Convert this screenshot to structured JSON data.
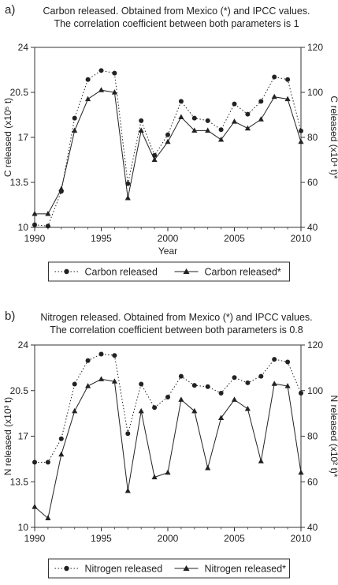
{
  "panels": [
    {
      "letter": "a)",
      "title_line1": "Carbon released. Obtained from Mexico (*) and IPCC values.",
      "title_line2": "The correlation coefficient between both parameters is 1"
    },
    {
      "letter": "b)",
      "title_line1": "Nitrogen released. Obtained from Mexico (*) and IPCC values.",
      "title_line2": "The correlation coefficient between both parameters is 0.8"
    }
  ],
  "chart_data": [
    {
      "type": "line",
      "title": "Carbon released. Obtained from Mexico (*) and IPCC values.",
      "subtitle": "The correlation coefficient between both parameters is 1",
      "xlabel": "Year",
      "ylabel_left": "C released (x10⁵ t)",
      "ylabel_right": "C released (x10⁴ t)*",
      "xlim": [
        1990,
        2010
      ],
      "xticks": [
        1990,
        1995,
        2000,
        2005,
        2010
      ],
      "ylim_left": [
        10,
        24
      ],
      "yticks_left": [
        "10",
        "13.5",
        "17",
        "20.5",
        "24"
      ],
      "ylim_right": [
        40,
        120
      ],
      "yticks_right": [
        "40",
        "60",
        "80",
        "100",
        "120"
      ],
      "grid": false,
      "legend": "bottom-center",
      "x": [
        1990,
        1991,
        1992,
        1993,
        1994,
        1995,
        1996,
        1997,
        1998,
        1999,
        2000,
        2001,
        2002,
        2003,
        2004,
        2005,
        2006,
        2007,
        2008,
        2009,
        2010
      ],
      "series": [
        {
          "name": "Carbon released",
          "axis": "left",
          "marker": "circle",
          "style": "dotted",
          "values": [
            10.2,
            10.1,
            12.8,
            18.5,
            21.5,
            22.2,
            22.0,
            13.4,
            18.3,
            15.6,
            17.2,
            19.8,
            18.5,
            18.3,
            17.6,
            19.6,
            18.8,
            19.8,
            21.7,
            21.5,
            17.5
          ]
        },
        {
          "name": "Carbon released*",
          "axis": "right",
          "marker": "triangle",
          "style": "solid",
          "values": [
            46,
            46,
            57,
            83,
            97,
            101,
            100,
            53,
            83,
            70,
            78,
            89,
            83,
            83,
            79,
            87,
            84,
            88,
            98,
            97,
            78
          ]
        }
      ]
    },
    {
      "type": "line",
      "title": "Nitrogen released. Obtained from Mexico (*) and IPCC values.",
      "subtitle": "The correlation coefficient between both parameters is 0.8",
      "xlabel": "",
      "ylabel_left": "N released (x10³ t)",
      "ylabel_right": "N released (x10² t)*",
      "xlim": [
        1990,
        2010
      ],
      "xticks": [
        1990,
        1995,
        2000,
        2005,
        2010
      ],
      "ylim_left": [
        10,
        24
      ],
      "yticks_left": [
        "10",
        "13.5",
        "17",
        "20.5",
        "24"
      ],
      "ylim_right": [
        40,
        120
      ],
      "yticks_right": [
        "40",
        "60",
        "80",
        "100",
        "120"
      ],
      "grid": false,
      "legend": "bottom-center",
      "x": [
        1990,
        1991,
        1992,
        1993,
        1994,
        1995,
        1996,
        1997,
        1998,
        1999,
        2000,
        2001,
        2002,
        2003,
        2004,
        2005,
        2006,
        2007,
        2008,
        2009,
        2010
      ],
      "series": [
        {
          "name": "Nitrogen released",
          "axis": "left",
          "marker": "circle",
          "style": "dotted",
          "values": [
            15.0,
            15.0,
            16.8,
            21.0,
            22.8,
            23.3,
            23.2,
            17.2,
            21.0,
            19.2,
            20.0,
            21.6,
            20.9,
            20.8,
            20.3,
            21.5,
            21.1,
            21.6,
            22.9,
            22.7,
            20.3
          ]
        },
        {
          "name": "Nitrogen released*",
          "axis": "right",
          "marker": "triangle",
          "style": "solid",
          "values": [
            49,
            44,
            72,
            91,
            102,
            105,
            104,
            56,
            91,
            62,
            64,
            96,
            91,
            66,
            88,
            96,
            92,
            69,
            103,
            102,
            64
          ]
        }
      ]
    }
  ]
}
